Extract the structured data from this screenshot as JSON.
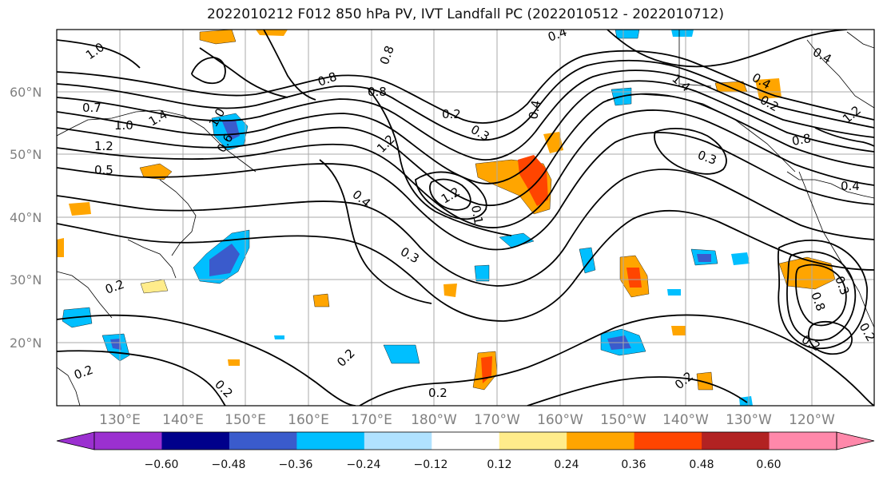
{
  "title": "2022010212 F012 850 hPa PV, IVT Landfall PC (2022010512 - 2022010712)",
  "lat_labels": [
    "60°N",
    "50°N",
    "40°N",
    "30°N",
    "20°N"
  ],
  "lon_labels": [
    "130°E",
    "140°E",
    "150°E",
    "160°E",
    "170°E",
    "180°W",
    "170°W",
    "160°W",
    "150°W",
    "140°W",
    "130°W",
    "120°W"
  ],
  "contour_labels": [
    "1.0",
    "0.8",
    "0.7",
    "1.0",
    "1.4",
    "1.2",
    "0.5",
    "0.6",
    "0.8",
    "0.8",
    "1.2",
    "0.2",
    "0.3",
    "0.4",
    "1.2",
    "0.1",
    "0.4",
    "1.4",
    "0.3",
    "0.4",
    "0.2",
    "0.3",
    "0.2",
    "0.2",
    "0.2",
    "0.2",
    "0.8",
    "0.3",
    "1.2",
    "0.4",
    "0.4",
    "0.2",
    "0.8",
    "0.2",
    "1.0",
    "0.4",
    "0.2",
    "0.2"
  ],
  "colorbar": {
    "ticks": [
      "−0.60",
      "−0.48",
      "−0.36",
      "−0.24",
      "−0.12",
      "0.12",
      "0.24",
      "0.36",
      "0.48",
      "0.60"
    ],
    "colors": [
      "#9b30d0",
      "#00008b",
      "#3a5bcc",
      "#00bfff",
      "#b0e2ff",
      "#ffffff",
      "#ffec8b",
      "#ffa500",
      "#ff4500",
      "#b22222",
      "#ff88aa",
      "#ff88aa"
    ]
  },
  "colors": {
    "neg_strong": "#3a5bcc",
    "neg_mid": "#00bfff",
    "neg_weak": "#b0e2ff",
    "pos_weak": "#ffec8b",
    "pos_mid": "#ffa500",
    "pos_strong": "#ff4500",
    "grid": "#a9a9a9",
    "contour": "#000000"
  }
}
